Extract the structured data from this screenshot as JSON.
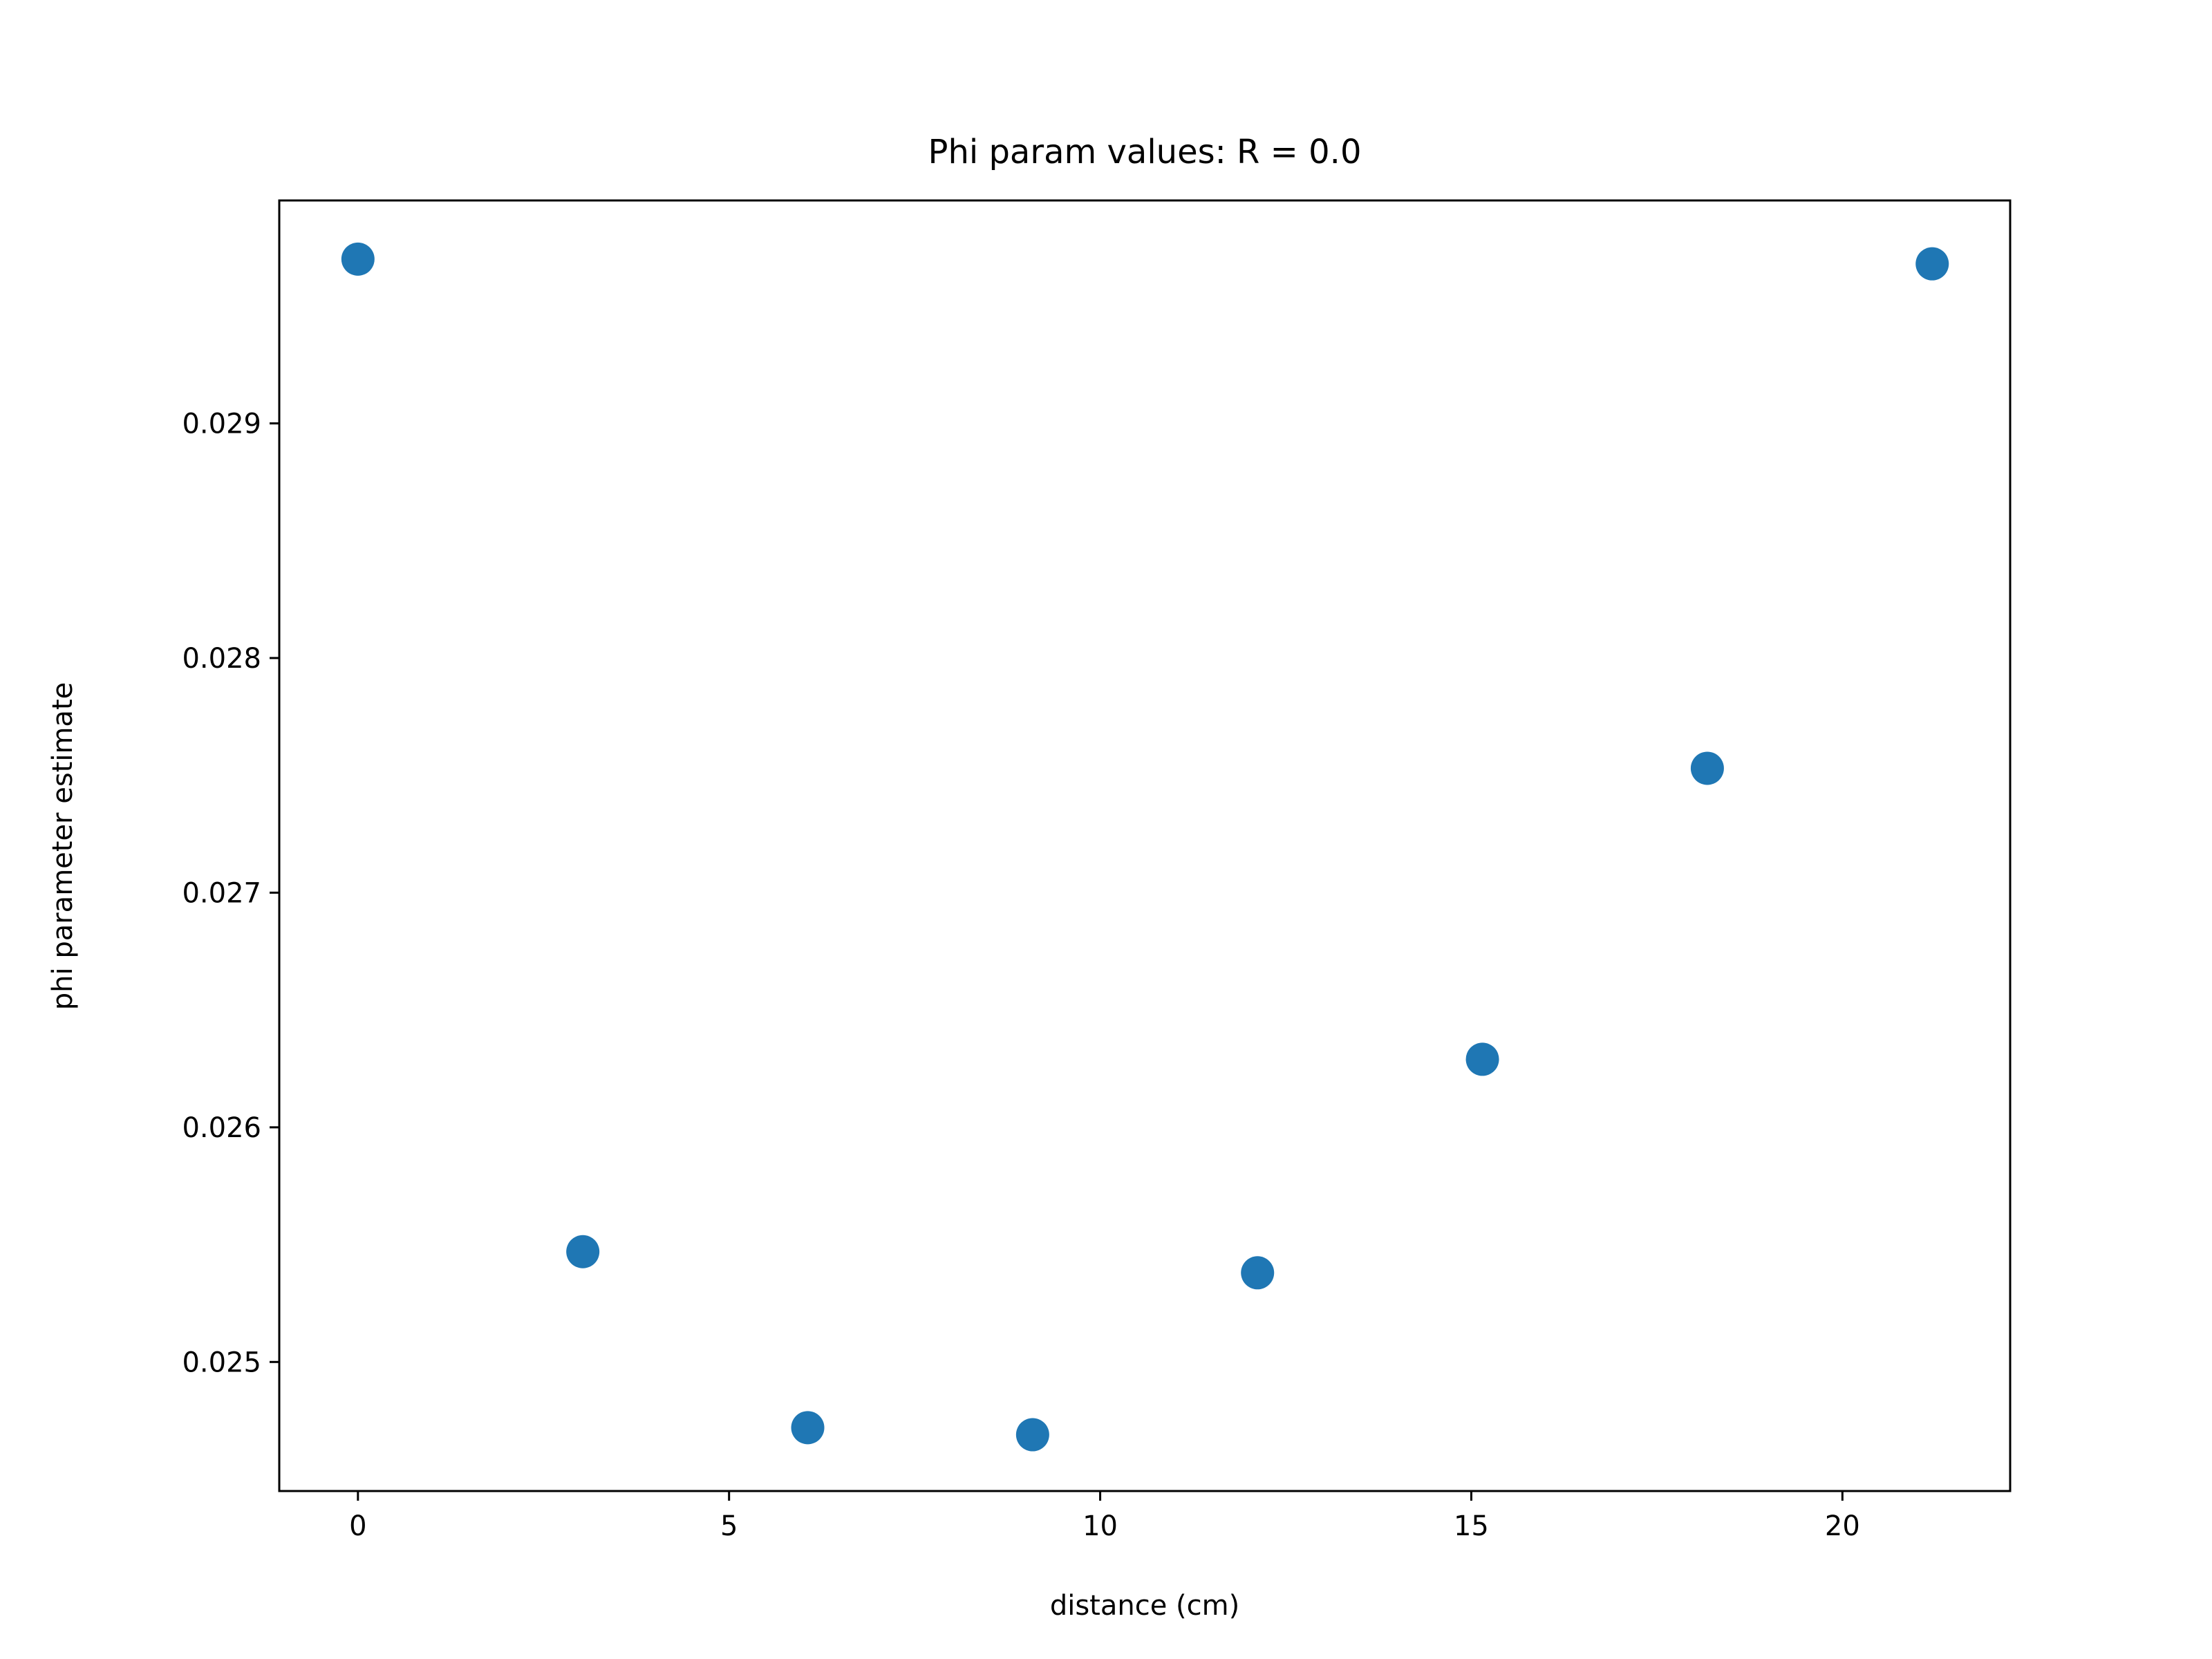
{
  "chart_data": {
    "type": "scatter",
    "title": "Phi param values: R = 0.0",
    "xlabel": "distance (cm)",
    "ylabel": "phi parameter estimate",
    "xlim": [
      -1.06,
      22.26
    ],
    "ylim": [
      0.02445,
      0.02995
    ],
    "x_ticks": [
      0,
      5,
      10,
      15,
      20
    ],
    "x_tick_labels": [
      "0",
      "5",
      "10",
      "15",
      "20"
    ],
    "y_ticks": [
      0.025,
      0.026,
      0.027,
      0.028,
      0.029
    ],
    "y_tick_labels": [
      "0.025",
      "0.026",
      "0.027",
      "0.028",
      "0.029"
    ],
    "grid": false,
    "marker_color": "#1f77b4",
    "series": [
      {
        "x": [
          0.0,
          3.03,
          6.06,
          9.09,
          12.12,
          15.15,
          18.18,
          21.21
        ],
        "y": [
          0.0297,
          0.02547,
          0.02472,
          0.02469,
          0.02538,
          0.02629,
          0.02753,
          0.02968
        ]
      }
    ]
  }
}
